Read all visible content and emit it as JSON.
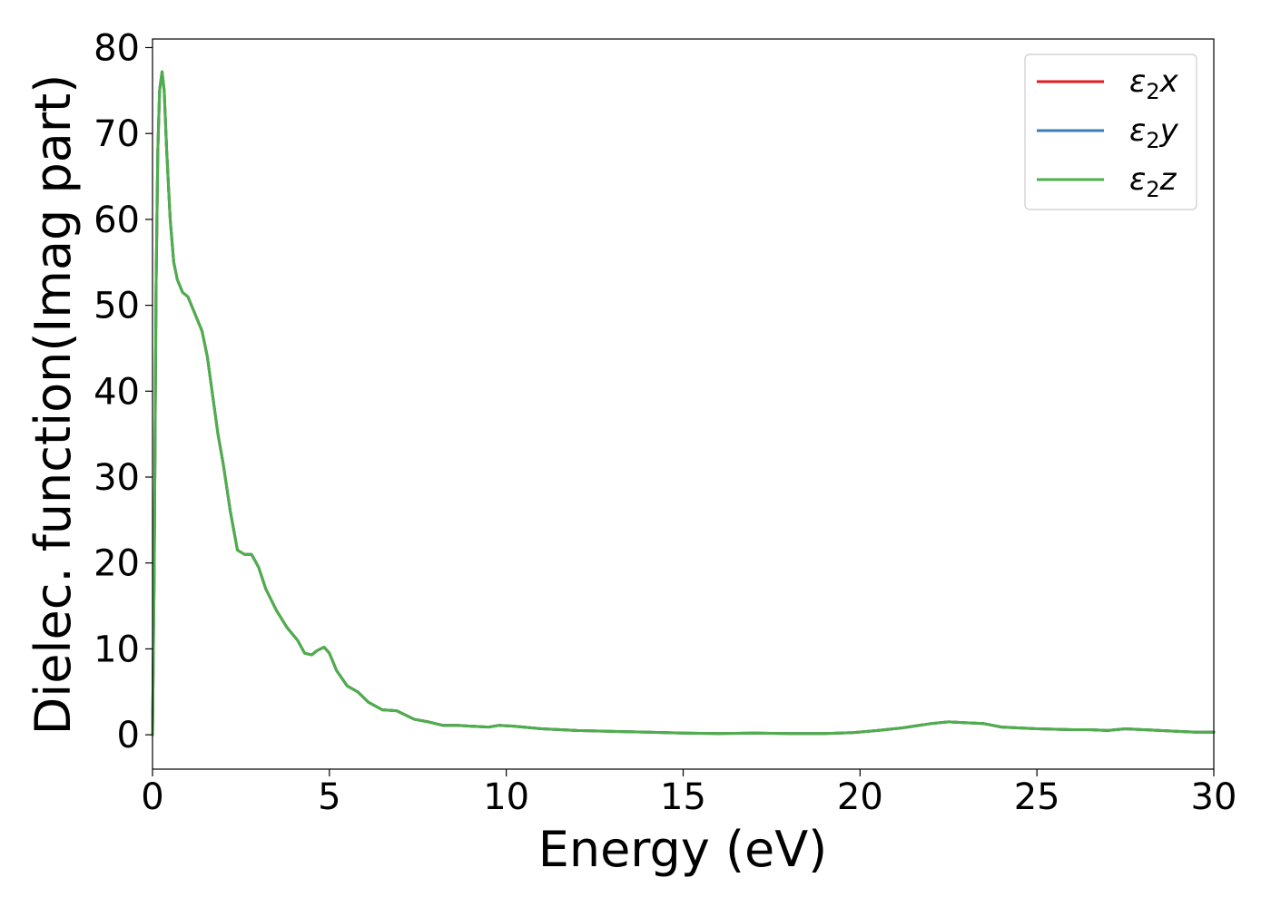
{
  "chart_data": {
    "type": "line",
    "title": "",
    "xlabel": "Energy (eV)",
    "ylabel": "Dielec. function(Imag part)",
    "xlim": [
      0,
      30
    ],
    "ylim": [
      -4,
      81
    ],
    "xticks": [
      0,
      5,
      10,
      15,
      20,
      25,
      30
    ],
    "yticks": [
      0,
      10,
      20,
      30,
      40,
      50,
      60,
      70,
      80
    ],
    "grid": false,
    "legend_position": "top-right",
    "series": [
      {
        "name": "ε2x",
        "legend": {
          "base": "ε",
          "sub": "2",
          "suffix": "x"
        },
        "color": "#e41a1c",
        "x": [
          0,
          0.05,
          0.1,
          0.15,
          0.2,
          0.27,
          0.33,
          0.4,
          0.5,
          0.6,
          0.7,
          0.85,
          1.0,
          1.1,
          1.25,
          1.4,
          1.55,
          1.7,
          1.85,
          2.0,
          2.2,
          2.4,
          2.6,
          2.8,
          3.0,
          3.2,
          3.5,
          3.8,
          4.1,
          4.3,
          4.5,
          4.65,
          4.85,
          5.0,
          5.2,
          5.5,
          5.8,
          6.1,
          6.5,
          6.9,
          7.1,
          7.4,
          7.8,
          8.2,
          8.6,
          9.0,
          9.5,
          9.8,
          10.2,
          11,
          12,
          13,
          14,
          15,
          16,
          17,
          18,
          19,
          19.8,
          20.5,
          21.2,
          22.0,
          22.5,
          23.0,
          23.5,
          24,
          25,
          26,
          26.5,
          27,
          27.5,
          28,
          29,
          29.5,
          30
        ],
        "y": [
          0,
          20,
          52,
          68,
          75,
          77.2,
          75,
          68,
          60,
          55,
          53,
          51.5,
          51,
          50,
          48.5,
          47,
          44,
          39.5,
          35,
          31.5,
          26,
          21.5,
          21,
          21,
          19.5,
          17,
          14.5,
          12.5,
          11,
          9.5,
          9.3,
          9.8,
          10.2,
          9.5,
          7.5,
          5.7,
          5,
          3.8,
          2.9,
          2.8,
          2.4,
          1.8,
          1.5,
          1.1,
          1.1,
          1.0,
          0.9,
          1.1,
          1.0,
          0.7,
          0.5,
          0.4,
          0.3,
          0.2,
          0.15,
          0.2,
          0.15,
          0.15,
          0.25,
          0.5,
          0.8,
          1.3,
          1.5,
          1.4,
          1.3,
          0.9,
          0.7,
          0.6,
          0.6,
          0.5,
          0.7,
          0.6,
          0.4,
          0.3,
          0.3
        ]
      },
      {
        "name": "ε2y",
        "legend": {
          "base": "ε",
          "sub": "2",
          "suffix": "y"
        },
        "color": "#377eb8",
        "x": [
          0,
          0.05,
          0.1,
          0.15,
          0.2,
          0.27,
          0.33,
          0.4,
          0.5,
          0.6,
          0.7,
          0.85,
          1.0,
          1.1,
          1.25,
          1.4,
          1.55,
          1.7,
          1.85,
          2.0,
          2.2,
          2.4,
          2.6,
          2.8,
          3.0,
          3.2,
          3.5,
          3.8,
          4.1,
          4.3,
          4.5,
          4.65,
          4.85,
          5.0,
          5.2,
          5.5,
          5.8,
          6.1,
          6.5,
          6.9,
          7.1,
          7.4,
          7.8,
          8.2,
          8.6,
          9.0,
          9.5,
          9.8,
          10.2,
          11,
          12,
          13,
          14,
          15,
          16,
          17,
          18,
          19,
          19.8,
          20.5,
          21.2,
          22.0,
          22.5,
          23.0,
          23.5,
          24,
          25,
          26,
          26.5,
          27,
          27.5,
          28,
          29,
          29.5,
          30
        ],
        "y": [
          0,
          20,
          52,
          68,
          75,
          77.2,
          75,
          68,
          60,
          55,
          53,
          51.5,
          51,
          50,
          48.5,
          47,
          44,
          39.5,
          35,
          31.5,
          26,
          21.5,
          21,
          21,
          19.5,
          17,
          14.5,
          12.5,
          11,
          9.5,
          9.3,
          9.8,
          10.2,
          9.5,
          7.5,
          5.7,
          5,
          3.8,
          2.9,
          2.8,
          2.4,
          1.8,
          1.5,
          1.1,
          1.1,
          1.0,
          0.9,
          1.1,
          1.0,
          0.7,
          0.5,
          0.4,
          0.3,
          0.2,
          0.15,
          0.2,
          0.15,
          0.15,
          0.25,
          0.5,
          0.8,
          1.3,
          1.5,
          1.4,
          1.3,
          0.9,
          0.7,
          0.6,
          0.6,
          0.5,
          0.7,
          0.6,
          0.4,
          0.3,
          0.3
        ]
      },
      {
        "name": "ε2z",
        "legend": {
          "base": "ε",
          "sub": "2",
          "suffix": "z"
        },
        "color": "#4daf4a",
        "x": [
          0,
          0.05,
          0.1,
          0.15,
          0.2,
          0.27,
          0.33,
          0.4,
          0.5,
          0.6,
          0.7,
          0.85,
          1.0,
          1.1,
          1.25,
          1.4,
          1.55,
          1.7,
          1.85,
          2.0,
          2.2,
          2.4,
          2.6,
          2.8,
          3.0,
          3.2,
          3.5,
          3.8,
          4.1,
          4.3,
          4.5,
          4.65,
          4.85,
          5.0,
          5.2,
          5.5,
          5.8,
          6.1,
          6.5,
          6.9,
          7.1,
          7.4,
          7.8,
          8.2,
          8.6,
          9.0,
          9.5,
          9.8,
          10.2,
          11,
          12,
          13,
          14,
          15,
          16,
          17,
          18,
          19,
          19.8,
          20.5,
          21.2,
          22.0,
          22.5,
          23.0,
          23.5,
          24,
          25,
          26,
          26.5,
          27,
          27.5,
          28,
          29,
          29.5,
          30
        ],
        "y": [
          0,
          20,
          52,
          68,
          75,
          77.2,
          75,
          68,
          60,
          55,
          53,
          51.5,
          51,
          50,
          48.5,
          47,
          44,
          39.5,
          35,
          31.5,
          26,
          21.5,
          21,
          21,
          19.5,
          17,
          14.5,
          12.5,
          11,
          9.5,
          9.3,
          9.8,
          10.2,
          9.5,
          7.5,
          5.7,
          5,
          3.8,
          2.9,
          2.8,
          2.4,
          1.8,
          1.5,
          1.1,
          1.1,
          1.0,
          0.9,
          1.1,
          1.0,
          0.7,
          0.5,
          0.4,
          0.3,
          0.2,
          0.15,
          0.2,
          0.15,
          0.15,
          0.25,
          0.5,
          0.8,
          1.3,
          1.5,
          1.4,
          1.3,
          0.9,
          0.7,
          0.6,
          0.6,
          0.5,
          0.7,
          0.6,
          0.4,
          0.3,
          0.3
        ]
      }
    ]
  }
}
